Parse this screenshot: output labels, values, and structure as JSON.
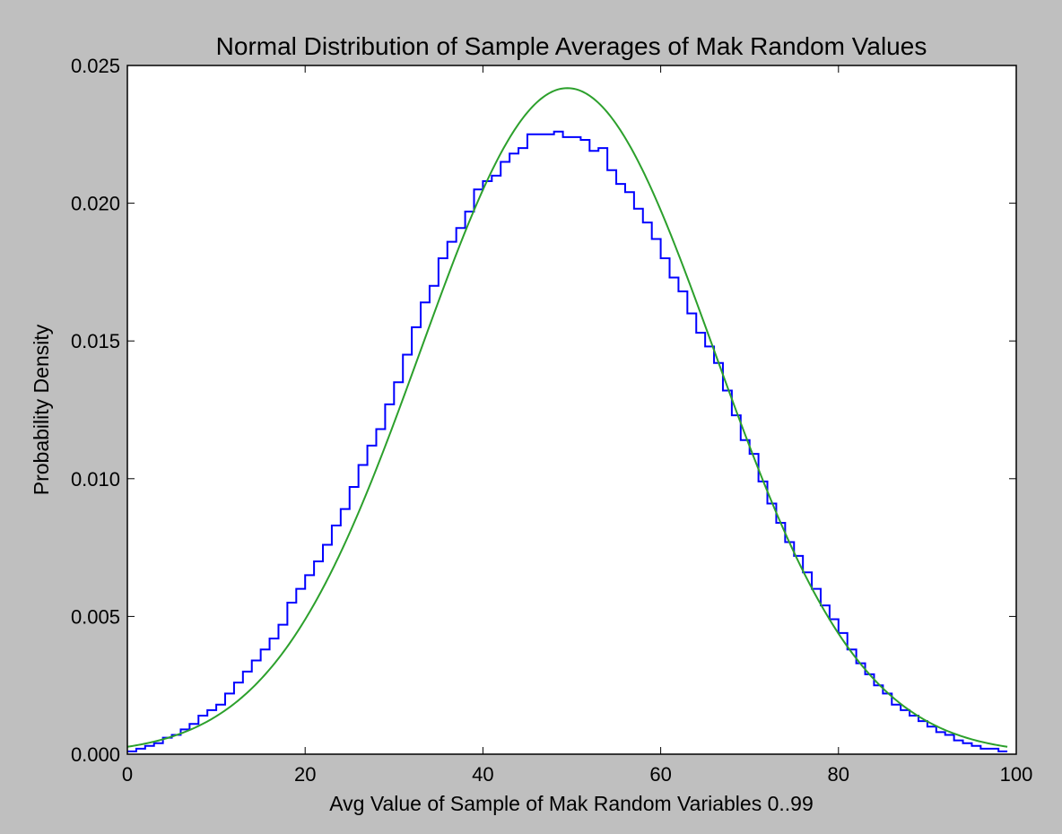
{
  "chart_data": {
    "type": "line",
    "title": "Normal Distribution of Sample Averages of Mak Random Values",
    "xlabel": "Avg Value of Sample of Mak Random Variables 0..99",
    "ylabel": "Probability Density",
    "xlim": [
      0,
      100
    ],
    "ylim": [
      0,
      0.025
    ],
    "x_ticks": [
      "0",
      "20",
      "40",
      "60",
      "80",
      "100"
    ],
    "y_ticks": [
      "0.000",
      "0.005",
      "0.010",
      "0.015",
      "0.020",
      "0.025"
    ],
    "grid": false,
    "legend": "none",
    "series": [
      {
        "kind": "step-histogram",
        "color": "#0000ff",
        "bin_edges": [
          0,
          1,
          2,
          3,
          4,
          5,
          6,
          7,
          8,
          9,
          10,
          11,
          12,
          13,
          14,
          15,
          16,
          17,
          18,
          19,
          20,
          21,
          22,
          23,
          24,
          25,
          26,
          27,
          28,
          29,
          30,
          31,
          32,
          33,
          34,
          35,
          36,
          37,
          38,
          39,
          40,
          41,
          42,
          43,
          44,
          45,
          46,
          47,
          48,
          49,
          50,
          51,
          52,
          53,
          54,
          55,
          56,
          57,
          58,
          59,
          60,
          61,
          62,
          63,
          64,
          65,
          66,
          67,
          68,
          69,
          70,
          71,
          72,
          73,
          74,
          75,
          76,
          77,
          78,
          79,
          80,
          81,
          82,
          83,
          84,
          85,
          86,
          87,
          88,
          89,
          90,
          91,
          92,
          93,
          94,
          95,
          96,
          97,
          98,
          99
        ],
        "values": [
          0.0001,
          0.0002,
          0.0003,
          0.0004,
          0.0006,
          0.0007,
          0.0009,
          0.0011,
          0.0014,
          0.0016,
          0.0018,
          0.0022,
          0.0026,
          0.003,
          0.0034,
          0.0038,
          0.0042,
          0.0047,
          0.0055,
          0.006,
          0.0065,
          0.007,
          0.0076,
          0.0083,
          0.0089,
          0.0097,
          0.0105,
          0.0112,
          0.0118,
          0.0127,
          0.0135,
          0.0145,
          0.0155,
          0.0164,
          0.017,
          0.018,
          0.0186,
          0.0191,
          0.0197,
          0.0205,
          0.0208,
          0.021,
          0.0215,
          0.0218,
          0.022,
          0.0225,
          0.0225,
          0.0225,
          0.0226,
          0.0224,
          0.0224,
          0.0223,
          0.0219,
          0.022,
          0.0212,
          0.0207,
          0.0204,
          0.0198,
          0.0193,
          0.0187,
          0.018,
          0.0173,
          0.0168,
          0.016,
          0.0153,
          0.0148,
          0.0142,
          0.0132,
          0.0123,
          0.0114,
          0.0109,
          0.0099,
          0.0091,
          0.0084,
          0.0077,
          0.0072,
          0.0066,
          0.006,
          0.0054,
          0.0049,
          0.0044,
          0.0038,
          0.0033,
          0.0029,
          0.0025,
          0.0022,
          0.0018,
          0.0016,
          0.0014,
          0.0012,
          0.001,
          0.0008,
          0.0007,
          0.0005,
          0.0004,
          0.0003,
          0.0002,
          0.0002,
          0.0001
        ]
      },
      {
        "kind": "normal-pdf-curve",
        "color": "#2ca02c",
        "mean": 49.5,
        "std": 16.5,
        "x_range": [
          0,
          99
        ]
      }
    ]
  }
}
